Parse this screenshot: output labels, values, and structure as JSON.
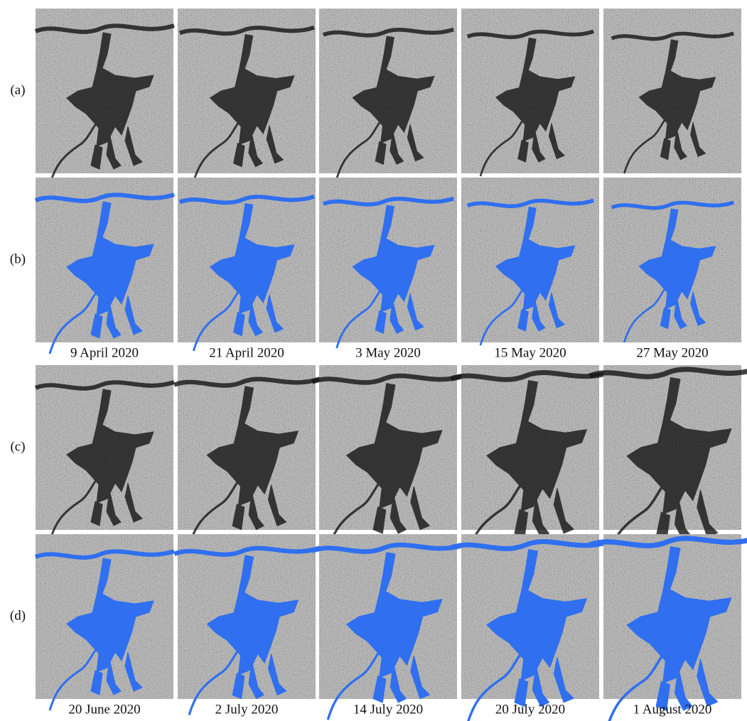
{
  "groups": [
    {
      "rows": [
        "(a)",
        "(b)"
      ],
      "dates": [
        "9 April 2020",
        "21 April 2020",
        "3 May 2020",
        "15 May 2020",
        "27 May 2020"
      ]
    },
    {
      "rows": [
        "(c)",
        "(d)"
      ],
      "dates": [
        "20 June 2020",
        "2 July 2020",
        "14 July 2020",
        "20 July 2020",
        "1 August 2020"
      ]
    }
  ]
}
